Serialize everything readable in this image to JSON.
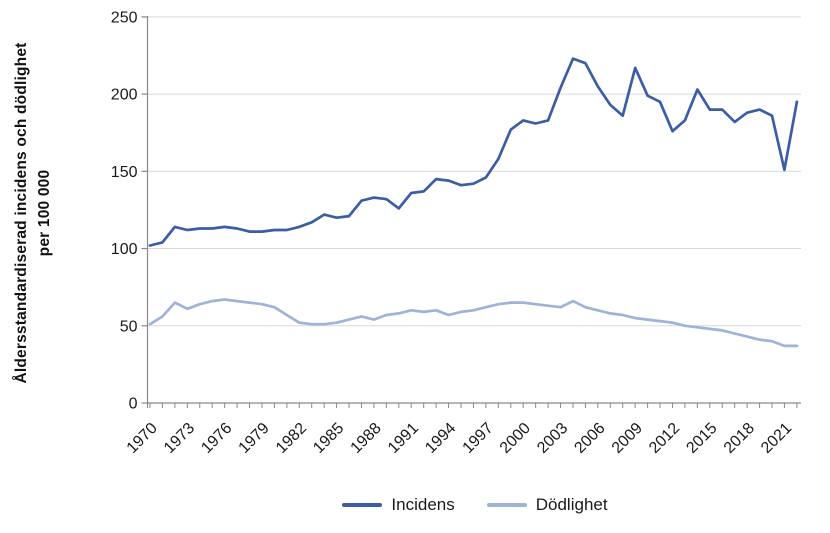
{
  "chart_data": {
    "type": "line",
    "ylabel_line1": "Åldersstandardiserad incidens och dödlighet",
    "ylabel_line2": "per 100 000",
    "ylim": [
      0,
      250
    ],
    "ytick_step": 50,
    "xtick_label_step": 3,
    "grid": true,
    "legend_position": "bottom",
    "years": [
      1970,
      1971,
      1972,
      1973,
      1974,
      1975,
      1976,
      1977,
      1978,
      1979,
      1980,
      1981,
      1982,
      1983,
      1984,
      1985,
      1986,
      1987,
      1988,
      1989,
      1990,
      1991,
      1992,
      1993,
      1994,
      1995,
      1996,
      1997,
      1998,
      1999,
      2000,
      2001,
      2002,
      2003,
      2004,
      2005,
      2006,
      2007,
      2008,
      2009,
      2010,
      2011,
      2012,
      2013,
      2014,
      2015,
      2016,
      2017,
      2018,
      2019,
      2020,
      2021,
      2022
    ],
    "series": [
      {
        "name": "Incidens",
        "color": "#3a5da6",
        "values": [
          102,
          104,
          114,
          112,
          113,
          113,
          114,
          113,
          111,
          111,
          112,
          112,
          114,
          117,
          122,
          120,
          121,
          131,
          133,
          132,
          126,
          136,
          137,
          145,
          144,
          141,
          142,
          146,
          158,
          177,
          183,
          181,
          183,
          204,
          223,
          220,
          205,
          193,
          186,
          217,
          199,
          195,
          176,
          183,
          203,
          190,
          190,
          182,
          188,
          190,
          186,
          151,
          195
        ]
      },
      {
        "name": "Dödlighet",
        "color": "#9db3d8",
        "values": [
          51,
          56,
          65,
          61,
          64,
          66,
          67,
          66,
          65,
          64,
          62,
          57,
          52,
          51,
          51,
          52,
          54,
          56,
          54,
          57,
          58,
          60,
          59,
          60,
          57,
          59,
          60,
          62,
          64,
          65,
          65,
          64,
          63,
          62,
          66,
          62,
          60,
          58,
          57,
          55,
          54,
          53,
          52,
          50,
          49,
          48,
          47,
          45,
          43,
          41,
          40,
          37,
          37
        ]
      }
    ],
    "colors": {
      "grid": "#d9d9d9",
      "axis": "#898989",
      "tick_text": "#1a1a1a"
    }
  }
}
